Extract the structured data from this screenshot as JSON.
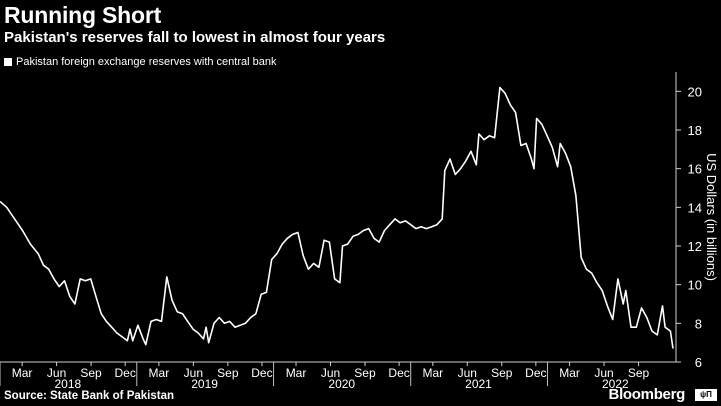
{
  "title": "Running Short",
  "subtitle": "Pakistan's reserves fall to lowest in almost four years",
  "source": "Source: State Bank of Pakistan",
  "brand": "Bloomberg",
  "brand_mark": "ψΠ",
  "chart_data": {
    "type": "line",
    "title": "Running Short",
    "subtitle": "Pakistan's reserves fall to lowest in almost four years",
    "ylabel": "US Dollars (in billions)",
    "ylim": [
      6,
      21
    ],
    "yticks": [
      6,
      8,
      10,
      12,
      14,
      16,
      18,
      20
    ],
    "xlim": [
      "2018-01-01",
      "2022-12-10"
    ],
    "xticks": [
      {
        "date": "2018-03-01",
        "label": "Mar"
      },
      {
        "date": "2018-06-01",
        "label": "Jun"
      },
      {
        "date": "2018-09-01",
        "label": "Sep"
      },
      {
        "date": "2018-12-01",
        "label": "Dec"
      },
      {
        "date": "2019-03-01",
        "label": "Mar"
      },
      {
        "date": "2019-06-01",
        "label": "Jun"
      },
      {
        "date": "2019-09-01",
        "label": "Sep"
      },
      {
        "date": "2019-12-01",
        "label": "Dec"
      },
      {
        "date": "2020-03-01",
        "label": "Mar"
      },
      {
        "date": "2020-06-01",
        "label": "Jun"
      },
      {
        "date": "2020-09-01",
        "label": "Sep"
      },
      {
        "date": "2020-12-01",
        "label": "Dec"
      },
      {
        "date": "2021-03-01",
        "label": "Mar"
      },
      {
        "date": "2021-06-01",
        "label": "Jun"
      },
      {
        "date": "2021-09-01",
        "label": "Sep"
      },
      {
        "date": "2021-12-01",
        "label": "Dec"
      },
      {
        "date": "2022-03-01",
        "label": "Mar"
      },
      {
        "date": "2022-06-01",
        "label": "Jun"
      },
      {
        "date": "2022-09-01",
        "label": "Sep"
      }
    ],
    "year_labels": [
      {
        "date": "2018-07-01",
        "label": "2018"
      },
      {
        "date": "2019-07-01",
        "label": "2019"
      },
      {
        "date": "2020-07-01",
        "label": "2020"
      },
      {
        "date": "2021-07-01",
        "label": "2021"
      },
      {
        "date": "2022-07-01",
        "label": "2022"
      }
    ],
    "grid": false,
    "legend_position": "top-left",
    "series": [
      {
        "name": "Pakistan foreign exchange reserves with central bank",
        "color": "#ffffff",
        "points": [
          [
            "2018-01-01",
            14.3
          ],
          [
            "2018-01-19",
            14.0
          ],
          [
            "2018-02-09",
            13.4
          ],
          [
            "2018-03-02",
            12.8
          ],
          [
            "2018-03-23",
            12.1
          ],
          [
            "2018-04-13",
            11.6
          ],
          [
            "2018-04-27",
            11.0
          ],
          [
            "2018-05-11",
            10.8
          ],
          [
            "2018-05-25",
            10.3
          ],
          [
            "2018-06-08",
            9.9
          ],
          [
            "2018-06-22",
            10.2
          ],
          [
            "2018-07-06",
            9.4
          ],
          [
            "2018-07-20",
            9.0
          ],
          [
            "2018-08-03",
            10.3
          ],
          [
            "2018-08-17",
            10.2
          ],
          [
            "2018-08-31",
            10.3
          ],
          [
            "2018-09-14",
            9.4
          ],
          [
            "2018-09-28",
            8.5
          ],
          [
            "2018-10-12",
            8.1
          ],
          [
            "2018-10-26",
            7.8
          ],
          [
            "2018-11-09",
            7.5
          ],
          [
            "2018-11-23",
            7.3
          ],
          [
            "2018-12-07",
            7.1
          ],
          [
            "2018-12-14",
            7.7
          ],
          [
            "2018-12-21",
            7.1
          ],
          [
            "2019-01-04",
            7.9
          ],
          [
            "2019-01-18",
            7.2
          ],
          [
            "2019-01-25",
            6.9
          ],
          [
            "2019-02-08",
            8.1
          ],
          [
            "2019-02-22",
            8.2
          ],
          [
            "2019-03-08",
            8.1
          ],
          [
            "2019-03-22",
            10.4
          ],
          [
            "2019-04-05",
            9.2
          ],
          [
            "2019-04-19",
            8.6
          ],
          [
            "2019-05-03",
            8.5
          ],
          [
            "2019-05-17",
            8.1
          ],
          [
            "2019-05-31",
            7.7
          ],
          [
            "2019-06-14",
            7.5
          ],
          [
            "2019-06-28",
            7.2
          ],
          [
            "2019-07-05",
            7.8
          ],
          [
            "2019-07-12",
            7.0
          ],
          [
            "2019-07-26",
            8.0
          ],
          [
            "2019-08-09",
            8.3
          ],
          [
            "2019-08-23",
            8.0
          ],
          [
            "2019-09-06",
            8.1
          ],
          [
            "2019-09-20",
            7.8
          ],
          [
            "2019-10-04",
            7.9
          ],
          [
            "2019-10-18",
            8.0
          ],
          [
            "2019-11-01",
            8.3
          ],
          [
            "2019-11-15",
            8.5
          ],
          [
            "2019-11-29",
            9.5
          ],
          [
            "2019-12-13",
            9.6
          ],
          [
            "2019-12-27",
            11.3
          ],
          [
            "2020-01-10",
            11.6
          ],
          [
            "2020-01-24",
            12.1
          ],
          [
            "2020-02-07",
            12.4
          ],
          [
            "2020-02-21",
            12.6
          ],
          [
            "2020-03-06",
            12.7
          ],
          [
            "2020-03-20",
            11.5
          ],
          [
            "2020-04-03",
            10.8
          ],
          [
            "2020-04-17",
            11.1
          ],
          [
            "2020-05-01",
            10.9
          ],
          [
            "2020-05-15",
            12.3
          ],
          [
            "2020-05-29",
            12.2
          ],
          [
            "2020-06-12",
            10.3
          ],
          [
            "2020-06-26",
            10.1
          ],
          [
            "2020-07-03",
            12.0
          ],
          [
            "2020-07-17",
            12.1
          ],
          [
            "2020-07-31",
            12.5
          ],
          [
            "2020-08-14",
            12.6
          ],
          [
            "2020-08-28",
            12.8
          ],
          [
            "2020-09-11",
            12.9
          ],
          [
            "2020-09-25",
            12.4
          ],
          [
            "2020-10-09",
            12.2
          ],
          [
            "2020-10-23",
            12.8
          ],
          [
            "2020-11-06",
            13.1
          ],
          [
            "2020-11-20",
            13.4
          ],
          [
            "2020-12-04",
            13.2
          ],
          [
            "2020-12-18",
            13.3
          ],
          [
            "2021-01-01",
            13.1
          ],
          [
            "2021-01-15",
            12.9
          ],
          [
            "2021-01-29",
            13.0
          ],
          [
            "2021-02-12",
            12.9
          ],
          [
            "2021-02-26",
            13.0
          ],
          [
            "2021-03-12",
            13.1
          ],
          [
            "2021-03-26",
            13.4
          ],
          [
            "2021-04-02",
            15.9
          ],
          [
            "2021-04-16",
            16.5
          ],
          [
            "2021-04-30",
            15.7
          ],
          [
            "2021-05-14",
            16.0
          ],
          [
            "2021-05-28",
            16.4
          ],
          [
            "2021-06-11",
            16.9
          ],
          [
            "2021-06-25",
            16.2
          ],
          [
            "2021-07-02",
            17.8
          ],
          [
            "2021-07-16",
            17.5
          ],
          [
            "2021-07-30",
            17.7
          ],
          [
            "2021-08-13",
            17.6
          ],
          [
            "2021-08-27",
            20.2
          ],
          [
            "2021-09-10",
            19.9
          ],
          [
            "2021-09-24",
            19.3
          ],
          [
            "2021-10-08",
            18.9
          ],
          [
            "2021-10-22",
            17.2
          ],
          [
            "2021-11-05",
            17.3
          ],
          [
            "2021-11-19",
            16.5
          ],
          [
            "2021-11-26",
            16.0
          ],
          [
            "2021-12-03",
            18.6
          ],
          [
            "2021-12-17",
            18.3
          ],
          [
            "2021-12-31",
            17.7
          ],
          [
            "2022-01-14",
            17.1
          ],
          [
            "2022-01-28",
            16.1
          ],
          [
            "2022-02-04",
            17.3
          ],
          [
            "2022-02-18",
            16.8
          ],
          [
            "2022-03-04",
            16.1
          ],
          [
            "2022-03-18",
            14.6
          ],
          [
            "2022-04-01",
            11.4
          ],
          [
            "2022-04-15",
            10.8
          ],
          [
            "2022-04-29",
            10.6
          ],
          [
            "2022-05-13",
            10.1
          ],
          [
            "2022-05-27",
            9.7
          ],
          [
            "2022-06-10",
            8.9
          ],
          [
            "2022-06-24",
            8.2
          ],
          [
            "2022-07-08",
            10.3
          ],
          [
            "2022-07-22",
            9.0
          ],
          [
            "2022-07-29",
            9.7
          ],
          [
            "2022-08-12",
            7.8
          ],
          [
            "2022-08-26",
            7.8
          ],
          [
            "2022-09-09",
            8.8
          ],
          [
            "2022-09-23",
            8.3
          ],
          [
            "2022-10-07",
            7.6
          ],
          [
            "2022-10-21",
            7.4
          ],
          [
            "2022-11-04",
            8.9
          ],
          [
            "2022-11-11",
            7.8
          ],
          [
            "2022-11-25",
            7.6
          ],
          [
            "2022-12-02",
            6.7
          ]
        ]
      }
    ]
  }
}
